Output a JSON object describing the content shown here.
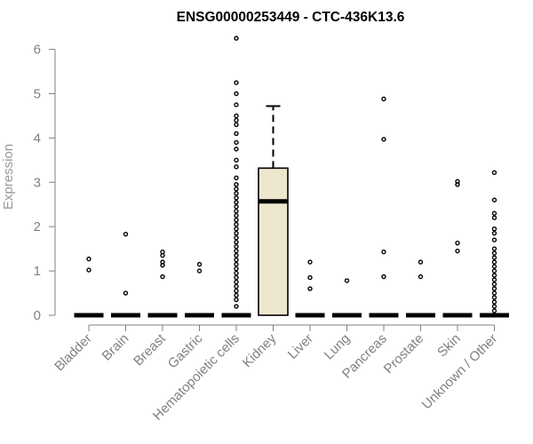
{
  "chart_data": {
    "type": "boxplot",
    "title": "ENSG00000253449 - CTC-436K13.6",
    "ylabel": "Expression",
    "xlabel": "",
    "ylim": [
      0,
      6.3
    ],
    "yticks": [
      0,
      1,
      2,
      3,
      4,
      5,
      6
    ],
    "box_fill": "#ede7cf",
    "categories": [
      "Bladder",
      "Brain",
      "Breast",
      "Gastric",
      "Hematopoietic cells",
      "Kidney",
      "Liver",
      "Lung",
      "Pancreas",
      "Prostate",
      "Skin",
      "Unknown / Other"
    ],
    "series": [
      {
        "category": "Bladder",
        "min": 0,
        "q1": 0,
        "median": 0,
        "q3": 0,
        "max": 0,
        "outliers": [
          1.02,
          1.27
        ]
      },
      {
        "category": "Brain",
        "min": 0,
        "q1": 0,
        "median": 0,
        "q3": 0,
        "max": 0,
        "outliers": [
          0.5,
          1.83
        ]
      },
      {
        "category": "Breast",
        "min": 0,
        "q1": 0,
        "median": 0,
        "q3": 0,
        "max": 0,
        "outliers": [
          0.87,
          1.13,
          1.2,
          1.35,
          1.43
        ]
      },
      {
        "category": "Gastric",
        "min": 0,
        "q1": 0,
        "median": 0,
        "q3": 0,
        "max": 0,
        "outliers": [
          1.0,
          1.15
        ]
      },
      {
        "category": "Hematopoietic cells",
        "min": 0,
        "q1": 0,
        "median": 0,
        "q3": 0,
        "max": 0,
        "outliers": [
          0.2,
          0.35,
          0.45,
          0.55,
          0.65,
          0.75,
          0.85,
          0.95,
          1.05,
          1.15,
          1.25,
          1.35,
          1.45,
          1.55,
          1.65,
          1.75,
          1.85,
          1.95,
          2.05,
          2.15,
          2.25,
          2.35,
          2.45,
          2.55,
          2.65,
          2.75,
          2.85,
          2.95,
          3.1,
          3.35,
          3.5,
          3.75,
          3.9,
          4.1,
          4.3,
          4.4,
          4.5,
          4.75,
          5.0,
          5.25,
          6.25
        ]
      },
      {
        "category": "Kidney",
        "min": 0,
        "q1": 0,
        "median": 2.57,
        "q3": 3.32,
        "max": 4.72,
        "outliers": []
      },
      {
        "category": "Liver",
        "min": 0,
        "q1": 0,
        "median": 0,
        "q3": 0,
        "max": 0,
        "outliers": [
          0.6,
          0.85,
          1.2
        ]
      },
      {
        "category": "Lung",
        "min": 0,
        "q1": 0,
        "median": 0,
        "q3": 0,
        "max": 0,
        "outliers": [
          0.78
        ]
      },
      {
        "category": "Pancreas",
        "min": 0,
        "q1": 0,
        "median": 0,
        "q3": 0,
        "max": 0,
        "outliers": [
          0.87,
          1.43,
          3.97,
          4.88
        ]
      },
      {
        "category": "Prostate",
        "min": 0,
        "q1": 0,
        "median": 0,
        "q3": 0,
        "max": 0,
        "outliers": [
          0.87,
          1.2
        ]
      },
      {
        "category": "Skin",
        "min": 0,
        "q1": 0,
        "median": 0,
        "q3": 0,
        "max": 0,
        "outliers": [
          1.45,
          1.63,
          2.95,
          3.02
        ]
      },
      {
        "category": "Unknown / Other",
        "min": 0,
        "q1": 0,
        "median": 0,
        "q3": 0,
        "max": 0,
        "outliers": [
          0.1,
          0.2,
          0.3,
          0.4,
          0.5,
          0.6,
          0.7,
          0.8,
          0.9,
          1.0,
          1.1,
          1.2,
          1.3,
          1.4,
          1.5,
          1.7,
          1.85,
          1.95,
          2.2,
          2.3,
          2.6,
          3.22
        ]
      }
    ]
  }
}
